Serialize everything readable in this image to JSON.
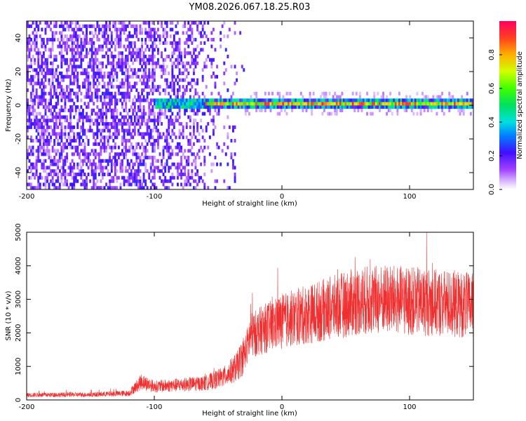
{
  "title": "YM08.2026.067.18.25.R03",
  "colors": {
    "snr_line": "#f03030",
    "axes": "#000000",
    "background": "#ffffff"
  },
  "chart_data": [
    {
      "type": "heatmap",
      "xlabel": "Height of straight line (km)",
      "ylabel": "Frequency (Hz)",
      "xlim": [
        -200,
        150
      ],
      "ylim": [
        -50,
        50
      ],
      "x_ticks": [
        "-200",
        "-100",
        "0",
        "100"
      ],
      "y_ticks": [
        "40",
        "20",
        "0",
        "-20",
        "-40"
      ],
      "colorbar": {
        "label": "Normalized spectral amplitude",
        "range": [
          0,
          1
        ],
        "ticks": [
          "0.0",
          "0.2",
          "0.4",
          "0.6",
          "0.8"
        ]
      },
      "signal_band": {
        "frequency_hz": 0,
        "from_km": -100,
        "to_km": 150
      },
      "noise_region": {
        "from_km": -200,
        "to_km": -30
      }
    },
    {
      "type": "line",
      "xlabel": "Height of straight line (km)",
      "ylabel": "SNR (10 * v/v)",
      "xlim": [
        -200,
        150
      ],
      "ylim": [
        0,
        5000
      ],
      "x_ticks": [
        "-200",
        "-100",
        "0",
        "100"
      ],
      "y_ticks": [
        "5000",
        "4000",
        "3000",
        "2000",
        "1000",
        "0"
      ],
      "envelope_x": [
        -200,
        -150,
        -120,
        -110,
        -100,
        -80,
        -60,
        -45,
        -35,
        -28,
        -25,
        -15,
        0,
        20,
        40,
        60,
        80,
        100,
        120,
        140,
        150
      ],
      "envelope_y": [
        150,
        160,
        200,
        550,
        400,
        450,
        500,
        700,
        1000,
        1500,
        1900,
        2100,
        2350,
        2550,
        2750,
        2950,
        3000,
        2950,
        2900,
        2850,
        2800
      ]
    }
  ]
}
